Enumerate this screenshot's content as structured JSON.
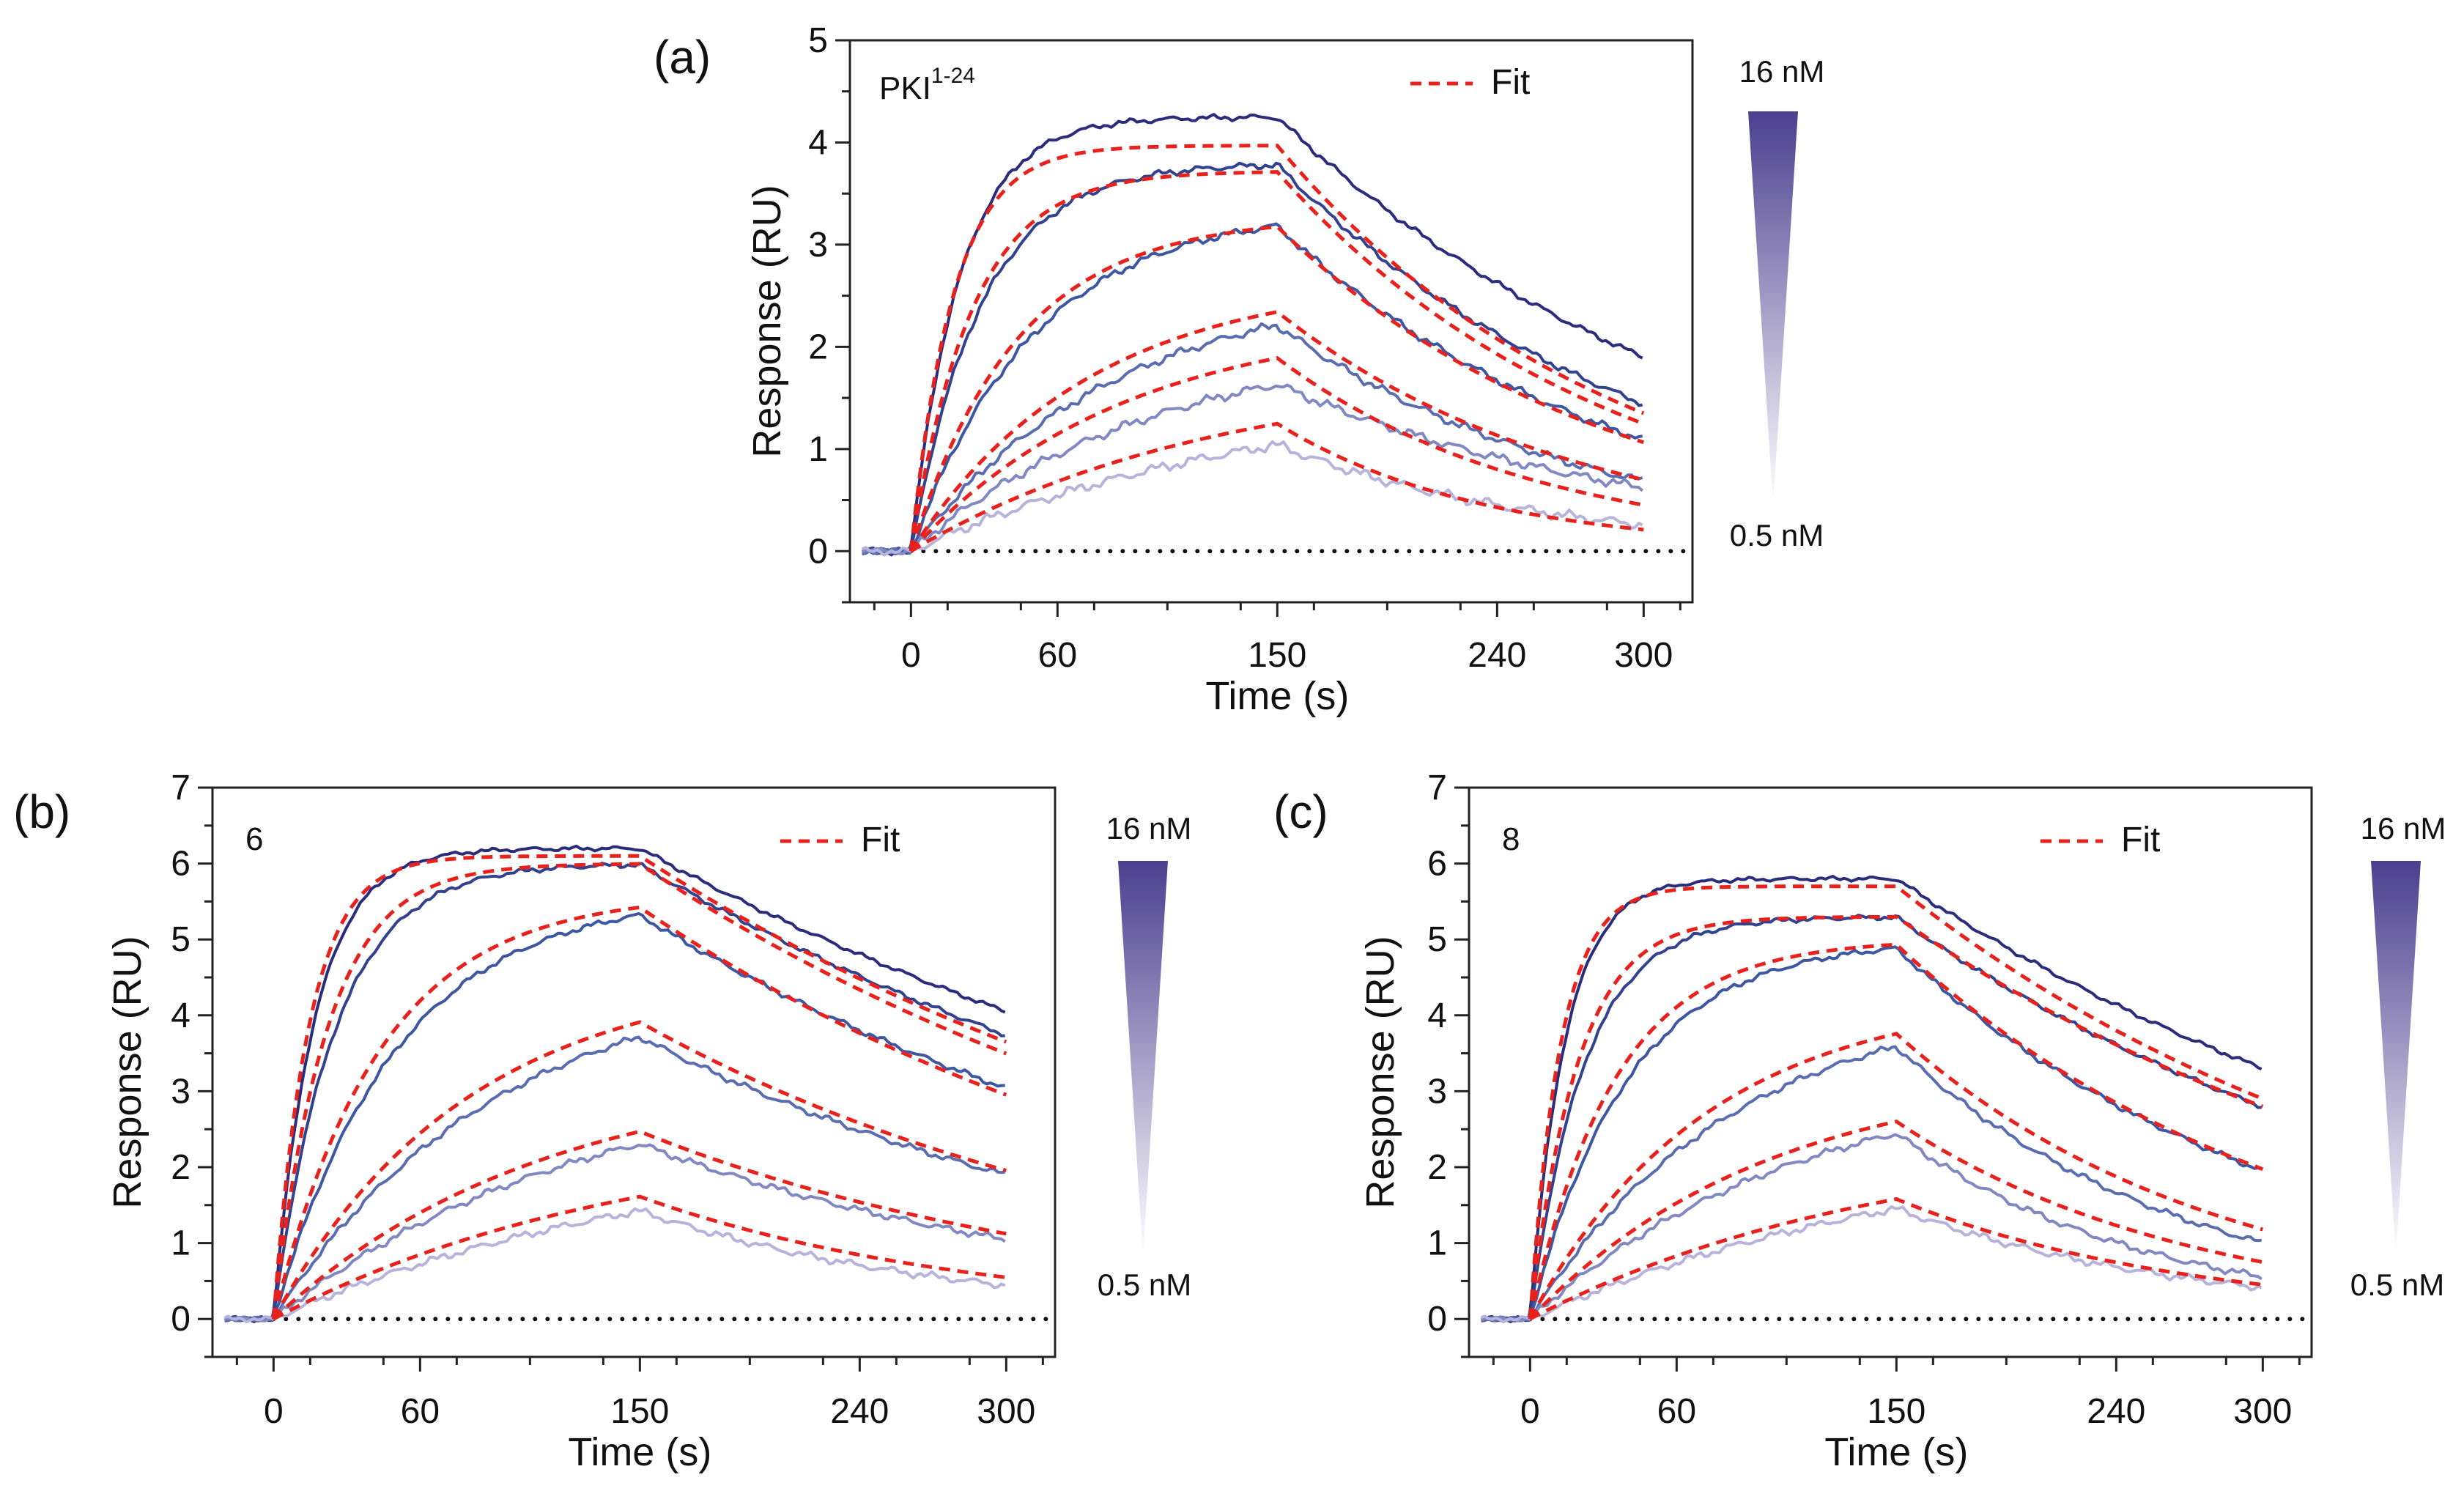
{
  "colors": {
    "fit": "#e8211d",
    "gradient_top": "#4b3f8f",
    "gradient_bottom": "#ffffff",
    "series": [
      "#2a2d7c",
      "#32428f",
      "#3d57a3",
      "#5a6db0",
      "#8089c2",
      "#b7b3da"
    ]
  },
  "chart_data": [
    {
      "type": "line",
      "panel_label": "(a)",
      "inset_label": "PKI",
      "inset_superscript": "1-24",
      "xlabel": "Time (s)",
      "ylabel": "Response (RU)",
      "xlim": [
        -25,
        320
      ],
      "ylim": [
        -0.5,
        5
      ],
      "xticks": [
        0,
        60,
        150,
        240,
        300
      ],
      "yticks": [
        0,
        1,
        2,
        3,
        4,
        5
      ],
      "legend": {
        "label": "Fit",
        "placement": "top-right"
      },
      "gradient_legend": {
        "top": "16 nM",
        "bottom": "0.5 nM"
      },
      "injection_end_s": 150,
      "series": [
        {
          "plateau": 4.25,
          "k_on": 0.05,
          "end_value": 1.9,
          "fit_plateau": 3.97,
          "fit_end": 1.35
        },
        {
          "plateau": 3.8,
          "k_on": 0.035,
          "end_value": 1.45,
          "fit_plateau": 3.72,
          "fit_end": 1.25
        },
        {
          "plateau": 3.35,
          "k_on": 0.02,
          "end_value": 1.15,
          "fit_plateau": 3.28,
          "fit_end": 1.1
        },
        {
          "plateau": 2.65,
          "k_on": 0.012,
          "end_value": 0.82,
          "fit_plateau": 2.68,
          "fit_end": 0.8
        },
        {
          "plateau": 2.1,
          "k_on": 0.01,
          "end_value": 0.8,
          "fit_plateau": 2.3,
          "fit_end": 0.55
        },
        {
          "plateau": 1.6,
          "k_on": 0.007,
          "end_value": 0.4,
          "fit_plateau": 1.78,
          "fit_end": 0.3
        }
      ]
    },
    {
      "type": "line",
      "panel_label": "(b)",
      "inset_label": "6",
      "xlabel": "Time (s)",
      "ylabel": "Response (RU)",
      "xlim": [
        -25,
        320
      ],
      "ylim": [
        -0.5,
        7
      ],
      "xticks": [
        0,
        60,
        150,
        240,
        300
      ],
      "yticks": [
        0,
        1,
        2,
        3,
        4,
        5,
        6,
        7
      ],
      "legend": {
        "label": "Fit",
        "placement": "top-right"
      },
      "gradient_legend": {
        "top": "16 nM",
        "bottom": "0.5 nM"
      },
      "injection_end_s": 150,
      "series": [
        {
          "plateau": 6.2,
          "k_on": 0.06,
          "end_value": 4.05,
          "fit_plateau": 6.1,
          "fit_end": 3.65
        },
        {
          "plateau": 6.0,
          "k_on": 0.04,
          "end_value": 3.75,
          "fit_plateau": 6.0,
          "fit_end": 3.5
        },
        {
          "plateau": 5.6,
          "k_on": 0.02,
          "end_value": 3.2,
          "fit_plateau": 5.6,
          "fit_end": 3.05
        },
        {
          "plateau": 4.6,
          "k_on": 0.011,
          "end_value": 2.35,
          "fit_plateau": 4.6,
          "fit_end": 2.3
        },
        {
          "plateau": 3.3,
          "k_on": 0.008,
          "end_value": 1.5,
          "fit_plateau": 3.3,
          "fit_end": 1.5
        },
        {
          "plateau": 2.4,
          "k_on": 0.006,
          "end_value": 0.75,
          "fit_plateau": 2.5,
          "fit_end": 0.85
        }
      ]
    },
    {
      "type": "line",
      "panel_label": "(c)",
      "inset_label": "8",
      "xlabel": "Time (s)",
      "ylabel": "Response (RU)",
      "xlim": [
        -25,
        320
      ],
      "ylim": [
        -0.5,
        7
      ],
      "xticks": [
        0,
        60,
        150,
        240,
        300
      ],
      "yticks": [
        0,
        1,
        2,
        3,
        4,
        5,
        6,
        7
      ],
      "legend": {
        "label": "Fit",
        "placement": "top-right"
      },
      "gradient_legend": {
        "top": "16 nM",
        "bottom": "0.5 nM"
      },
      "injection_end_s": 150,
      "series": [
        {
          "plateau": 5.8,
          "k_on": 0.07,
          "end_value": 3.3,
          "fit_plateau": 5.7,
          "fit_end": 2.9
        },
        {
          "plateau": 5.3,
          "k_on": 0.045,
          "end_value": 2.8,
          "fit_plateau": 5.3,
          "fit_end": 2.8
        },
        {
          "plateau": 5.0,
          "k_on": 0.025,
          "end_value": 2.0,
          "fit_plateau": 5.0,
          "fit_end": 2.0
        },
        {
          "plateau": 4.3,
          "k_on": 0.012,
          "end_value": 1.2,
          "fit_plateau": 4.3,
          "fit_end": 1.35
        },
        {
          "plateau": 3.3,
          "k_on": 0.009,
          "end_value": 0.75,
          "fit_plateau": 3.3,
          "fit_end": 0.95
        },
        {
          "plateau": 2.45,
          "k_on": 0.006,
          "end_value": 0.7,
          "fit_plateau": 2.45,
          "fit_end": 0.7
        }
      ]
    }
  ]
}
